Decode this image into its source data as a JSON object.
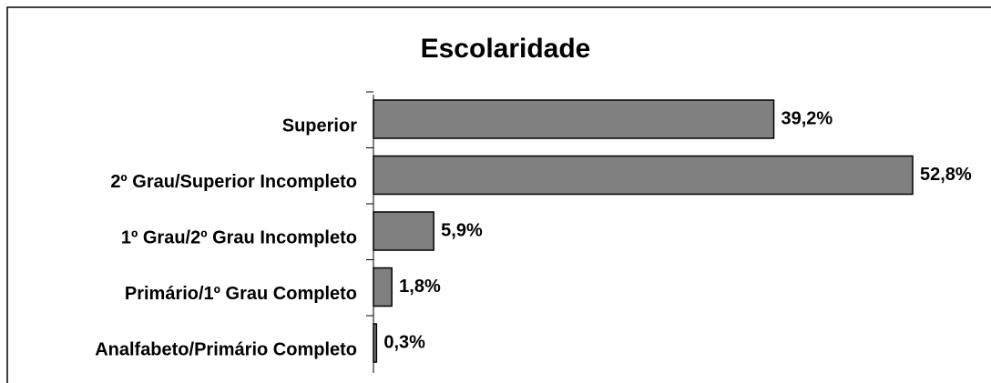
{
  "chart_data": {
    "type": "barh",
    "title": "Escolaridade",
    "categories": [
      "Superior",
      "2º Grau/Superior Incompleto",
      "1º Grau/2º Grau Incompleto",
      "Primário/1º Grau Completo",
      "Analfabeto/Primário Completo"
    ],
    "values": [
      39.2,
      52.8,
      5.9,
      1.8,
      0.3
    ],
    "value_labels": [
      "39,2%",
      "52,8%",
      "5,9%",
      "1,8%",
      "0,3%"
    ],
    "color": "#808080"
  }
}
